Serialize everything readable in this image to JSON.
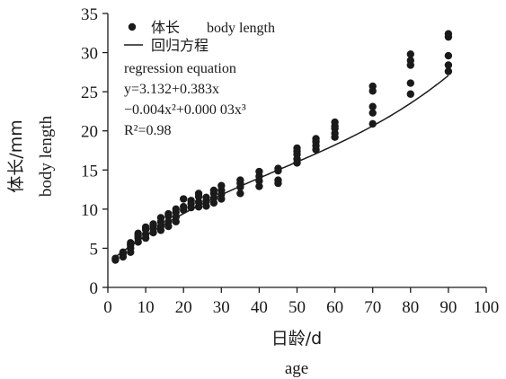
{
  "chart_data": {
    "type": "scatter",
    "xlabel_cn": "日龄/d",
    "xlabel_en": "age",
    "ylabel_cn": "体长/mm",
    "ylabel_en": "body length",
    "xlim": [
      0,
      100
    ],
    "ylim": [
      0,
      35
    ],
    "xticks": [
      0,
      10,
      20,
      30,
      40,
      50,
      60,
      70,
      80,
      90,
      100
    ],
    "yticks": [
      0,
      5,
      10,
      15,
      20,
      25,
      30,
      35
    ],
    "xtick_labels": [
      "0",
      "10",
      "20",
      "30",
      "40",
      "50",
      "60",
      "70",
      "80",
      "90",
      "100"
    ],
    "ytick_labels": [
      "0",
      "5",
      "10",
      "15",
      "20",
      "25",
      "30",
      "35"
    ],
    "grid": false,
    "legend_position": "top-left",
    "legend": {
      "points_label_cn": "体长",
      "points_label_en": "body length",
      "line_label_cn": "回归方程",
      "line_label_en": "regression equation"
    },
    "equation": {
      "line1": "y=3.132+0.383x",
      "line2": "−0.004x²+0.000 03x³",
      "r2": "R²=0.98"
    },
    "regression": {
      "a": 3.132,
      "b": 0.383,
      "c": -0.004,
      "d": 3e-05,
      "x_range": [
        2,
        90
      ]
    },
    "series": [
      {
        "name": "体长 body length",
        "points": [
          [
            2,
            3.5
          ],
          [
            2,
            3.7
          ],
          [
            4,
            3.9
          ],
          [
            4,
            4.3
          ],
          [
            4,
            4.5
          ],
          [
            6,
            4.5
          ],
          [
            6,
            5.0
          ],
          [
            6,
            5.4
          ],
          [
            6,
            5.7
          ],
          [
            8,
            5.8
          ],
          [
            8,
            6.3
          ],
          [
            8,
            6.6
          ],
          [
            8,
            6.9
          ],
          [
            10,
            6.3
          ],
          [
            10,
            6.8
          ],
          [
            10,
            7.4
          ],
          [
            10,
            7.7
          ],
          [
            12,
            7.0
          ],
          [
            12,
            7.5
          ],
          [
            12,
            7.9
          ],
          [
            12,
            8.1
          ],
          [
            14,
            7.3
          ],
          [
            14,
            7.8
          ],
          [
            14,
            8.4
          ],
          [
            14,
            8.9
          ],
          [
            16,
            7.8
          ],
          [
            16,
            8.4
          ],
          [
            16,
            9.1
          ],
          [
            16,
            9.4
          ],
          [
            18,
            8.4
          ],
          [
            18,
            9.0
          ],
          [
            18,
            9.6
          ],
          [
            18,
            10.0
          ],
          [
            20,
            9.9
          ],
          [
            20,
            10.3
          ],
          [
            20,
            11.3
          ],
          [
            22,
            10.2
          ],
          [
            22,
            10.7
          ],
          [
            22,
            11.1
          ],
          [
            24,
            10.3
          ],
          [
            24,
            10.9
          ],
          [
            24,
            11.6
          ],
          [
            24,
            12.0
          ],
          [
            26,
            10.4
          ],
          [
            26,
            11.0
          ],
          [
            26,
            11.5
          ],
          [
            28,
            10.8
          ],
          [
            28,
            11.4
          ],
          [
            28,
            12.0
          ],
          [
            28,
            12.4
          ],
          [
            30,
            11.3
          ],
          [
            30,
            11.9
          ],
          [
            30,
            12.4
          ],
          [
            30,
            13.0
          ],
          [
            35,
            12.0
          ],
          [
            35,
            12.8
          ],
          [
            35,
            13.3
          ],
          [
            35,
            13.7
          ],
          [
            40,
            12.9
          ],
          [
            40,
            13.6
          ],
          [
            40,
            14.2
          ],
          [
            40,
            14.8
          ],
          [
            45,
            13.3
          ],
          [
            45,
            13.7
          ],
          [
            45,
            14.9
          ],
          [
            45,
            15.2
          ],
          [
            50,
            15.9
          ],
          [
            50,
            16.4
          ],
          [
            50,
            17.0
          ],
          [
            50,
            17.4
          ],
          [
            50,
            17.8
          ],
          [
            55,
            17.6
          ],
          [
            55,
            18.1
          ],
          [
            55,
            18.6
          ],
          [
            55,
            19.0
          ],
          [
            60,
            19.2
          ],
          [
            60,
            19.7
          ],
          [
            60,
            20.3
          ],
          [
            60,
            20.6
          ],
          [
            60,
            21.1
          ],
          [
            70,
            20.9
          ],
          [
            70,
            22.3
          ],
          [
            70,
            23.1
          ],
          [
            70,
            25.1
          ],
          [
            70,
            25.7
          ],
          [
            80,
            24.7
          ],
          [
            80,
            26.1
          ],
          [
            80,
            28.4
          ],
          [
            80,
            29.0
          ],
          [
            80,
            29.8
          ],
          [
            90,
            27.6
          ],
          [
            90,
            28.4
          ],
          [
            90,
            29.6
          ],
          [
            90,
            32.0
          ],
          [
            90,
            32.4
          ]
        ]
      }
    ]
  }
}
